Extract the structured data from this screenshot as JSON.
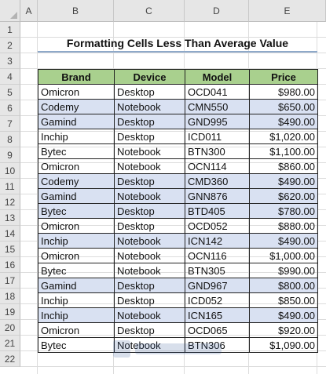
{
  "columns": [
    "A",
    "B",
    "C",
    "D",
    "E"
  ],
  "rows": [
    "1",
    "2",
    "3",
    "4",
    "5",
    "6",
    "7",
    "8",
    "9",
    "10",
    "11",
    "12",
    "13",
    "14",
    "15",
    "16",
    "17",
    "18",
    "19",
    "20",
    "21",
    "22"
  ],
  "title": "Formatting Cells Less Than Average Value",
  "table": {
    "headers": [
      "Brand",
      "Device",
      "Model",
      "Price"
    ],
    "rows": [
      {
        "brand": "Omicron",
        "device": "Desktop",
        "model": "OCD041",
        "price": "$980.00",
        "low": false
      },
      {
        "brand": "Codemy",
        "device": "Notebook",
        "model": "CMN550",
        "price": "$650.00",
        "low": true
      },
      {
        "brand": "Gamind",
        "device": "Desktop",
        "model": "GND995",
        "price": "$490.00",
        "low": true
      },
      {
        "brand": "Inchip",
        "device": "Desktop",
        "model": "ICD011",
        "price": "$1,020.00",
        "low": false
      },
      {
        "brand": "Bytec",
        "device": "Notebook",
        "model": "BTN300",
        "price": "$1,100.00",
        "low": false
      },
      {
        "brand": "Omicron",
        "device": "Notebook",
        "model": "OCN114",
        "price": "$860.00",
        "low": false
      },
      {
        "brand": "Codemy",
        "device": "Desktop",
        "model": "CMD360",
        "price": "$490.00",
        "low": true
      },
      {
        "brand": "Gamind",
        "device": "Notebook",
        "model": "GNN876",
        "price": "$620.00",
        "low": true
      },
      {
        "brand": "Bytec",
        "device": "Desktop",
        "model": "BTD405",
        "price": "$780.00",
        "low": true
      },
      {
        "brand": "Omicron",
        "device": "Desktop",
        "model": "OCD052",
        "price": "$880.00",
        "low": false
      },
      {
        "brand": "Inchip",
        "device": "Notebook",
        "model": "ICN142",
        "price": "$490.00",
        "low": true
      },
      {
        "brand": "Omicron",
        "device": "Notebook",
        "model": "OCN116",
        "price": "$1,000.00",
        "low": false
      },
      {
        "brand": "Bytec",
        "device": "Notebook",
        "model": "BTN305",
        "price": "$990.00",
        "low": false
      },
      {
        "brand": "Gamind",
        "device": "Desktop",
        "model": "GND967",
        "price": "$800.00",
        "low": true
      },
      {
        "brand": "Inchip",
        "device": "Desktop",
        "model": "ICD052",
        "price": "$850.00",
        "low": false
      },
      {
        "brand": "Inchip",
        "device": "Notebook",
        "model": "ICN165",
        "price": "$490.00",
        "low": true
      },
      {
        "brand": "Omicron",
        "device": "Desktop",
        "model": "OCD065",
        "price": "$920.00",
        "low": false
      },
      {
        "brand": "Bytec",
        "device": "Notebook",
        "model": "BTN306",
        "price": "$1,090.00",
        "low": false
      }
    ]
  },
  "colors": {
    "header_fill": "#a9d08e",
    "highlight_fill": "#d9e1f2",
    "title_underline": "#8ea9c9"
  },
  "watermark_icon": "exceldemy-logo-icon"
}
